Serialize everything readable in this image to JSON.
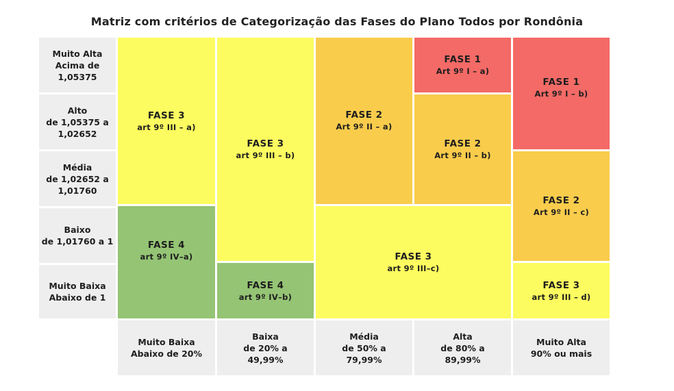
{
  "title": "Matriz com critérios de Categorização das Fases do Plano Todos por Rondônia",
  "row_labels": [
    [
      "Muito Alta",
      "Acima de",
      "1,05375"
    ],
    [
      "Alto",
      "de 1,05375 a",
      "1,02652"
    ],
    [
      "Média",
      "de 1,02652 a",
      "1,01760"
    ],
    [
      "Baixo",
      "de 1,01760 a 1"
    ],
    [
      "Muito Baixa",
      "Abaixo de 1"
    ]
  ],
  "col_labels": [
    [
      "Muito Baixa",
      "Abaixo de 20%"
    ],
    [
      "Baixa",
      "de 20% a",
      "49,99%"
    ],
    [
      "Média",
      "de 50% a",
      "79,99%"
    ],
    [
      "Alta",
      "de 80% a",
      "89,99%"
    ],
    [
      "Muito Alta",
      "90% ou mais"
    ]
  ],
  "phases": [
    {
      "fase": "FASE 3",
      "art": "art 9º III – a)",
      "color": "#fcfc60"
    },
    {
      "fase": "FASE 4",
      "art": "art 9º IV–a)",
      "color": "#94c474"
    },
    {
      "fase": "FASE 3",
      "art": "art 9º III – b)",
      "color": "#fcfc60"
    },
    {
      "fase": "FASE 4",
      "art": "art 9º IV–b)",
      "color": "#94c474"
    },
    {
      "fase": "FASE 2",
      "art": "Art 9º II – a)",
      "color": "#f9cc4c"
    },
    {
      "fase": "FASE 1",
      "art": "Art 9º I – a)",
      "color": "#f36a66"
    },
    {
      "fase": "FASE 2",
      "art": "Art 9º II – b)",
      "color": "#f9cc4c"
    },
    {
      "fase": "FASE 3",
      "art": "art 9º III–c)",
      "color": "#fcfc60"
    },
    {
      "fase": "FASE 1",
      "art": "Art 9º I – b)",
      "color": "#f36a66"
    },
    {
      "fase": "FASE 2",
      "art": "Art 9º II – c)",
      "color": "#f9cc4c"
    },
    {
      "fase": "FASE 3",
      "art": "art 9º III – d)",
      "color": "#fcfc60"
    }
  ]
}
